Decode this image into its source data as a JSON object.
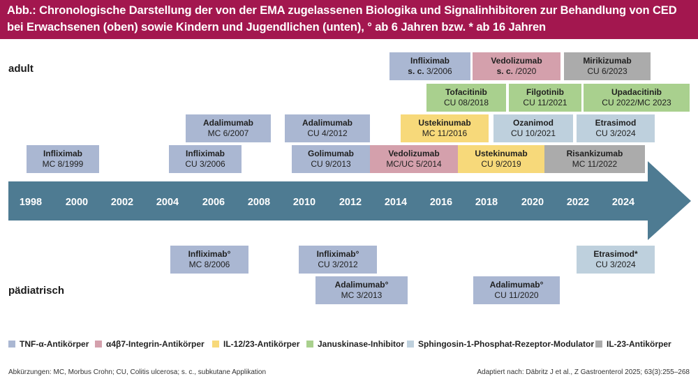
{
  "header": {
    "line1": "Abb.: Chronologische Darstellung der von der EMA zugelassenen Biologika und Signalinhibitoren zur Behandlung von CED",
    "line2": "bei Erwachsenen (oben) sowie Kindern und Jugendlichen (unten), ° ab 6 Jahren bzw. * ab 16 Jahren"
  },
  "labels": {
    "adult": "adult",
    "pediatric": "pädiatrisch"
  },
  "years": [
    "1998",
    "2000",
    "2002",
    "2004",
    "2006",
    "2008",
    "2010",
    "2012",
    "2014",
    "2016",
    "2018",
    "2020",
    "2022",
    "2024"
  ],
  "adult_boxes": [
    {
      "name": "Infliximab",
      "detail": "MC 8/1999",
      "cls": "tnf"
    },
    {
      "name": "Infliximab",
      "detail": "CU 3/2006",
      "cls": "tnf"
    },
    {
      "name": "Adalimumab",
      "detail": "MC 6/2007",
      "cls": "tnf"
    },
    {
      "name": "Adalimumab",
      "detail": "CU 4/2012",
      "cls": "tnf"
    },
    {
      "name": "Golimumab",
      "detail": "CU 9/2013",
      "cls": "tnf"
    },
    {
      "name": "Infliximab",
      "detail": "s. c. 3/2006",
      "cls": "tnf",
      "sc": true
    },
    {
      "name": "Vedolizumab",
      "detail": "MC/UC 5/2014",
      "cls": "a4b7"
    },
    {
      "name": "Vedolizumab",
      "detail": "s. c. /2020",
      "cls": "a4b7",
      "sc": true
    },
    {
      "name": "Ustekinumab",
      "detail": "MC 11/2016",
      "cls": "il12"
    },
    {
      "name": "Ustekinumab",
      "detail": "CU 9/2019",
      "cls": "il12"
    },
    {
      "name": "Tofacitinib",
      "detail": "CU 08/2018",
      "cls": "jak"
    },
    {
      "name": "Filgotinib",
      "detail": "CU 11/2021",
      "cls": "jak"
    },
    {
      "name": "Upadacitinib",
      "detail": "CU 2022/MC 2023",
      "cls": "jak"
    },
    {
      "name": "Ozanimod",
      "detail": "CU 10/2021",
      "cls": "s1p"
    },
    {
      "name": "Etrasimod",
      "detail": "CU 3/2024",
      "cls": "s1p"
    },
    {
      "name": "Mirikizumab",
      "detail": "CU 6/2023",
      "cls": "il23"
    },
    {
      "name": "Risankizumab",
      "detail": "MC 11/2022",
      "cls": "il23"
    }
  ],
  "pediatric_boxes": [
    {
      "name": "Infliximab°",
      "detail": "MC 8/2006",
      "cls": "tnf"
    },
    {
      "name": "Infliximab°",
      "detail": "CU 3/2012",
      "cls": "tnf"
    },
    {
      "name": "Adalimumab°",
      "detail": "MC 3/2013",
      "cls": "tnf"
    },
    {
      "name": "Adalimumab°",
      "detail": "CU 11/2020",
      "cls": "tnf"
    },
    {
      "name": "Etrasimod*",
      "detail": "CU 3/2024",
      "cls": "s1p"
    }
  ],
  "legend": [
    {
      "label": "TNF-α-Antikörper",
      "color": "#aab7d2"
    },
    {
      "label": "α4β7-Integrin-Antikörper",
      "color": "#d4a0ac"
    },
    {
      "label": "IL-12/23-Antikörper",
      "color": "#f7d97a"
    },
    {
      "label": "Januskinase-Inhibitor",
      "color": "#a9d08e"
    },
    {
      "label": "Sphingosin-1-Phosphat-Rezeptor-Modulator",
      "color": "#bed0dd"
    },
    {
      "label": "IL-23-Antikörper",
      "color": "#ababab"
    }
  ],
  "footnotes": {
    "left": "Abkürzungen: MC, Morbus Crohn; CU, Colitis ulcerosa; s. c., subkutane Applikation",
    "right": "Adaptiert nach: Däbritz J et al., Z Gastroenterol 2025; 63(3):255–268"
  },
  "colors": {
    "header": "#a3174f",
    "arrow": "#4e7b92"
  }
}
